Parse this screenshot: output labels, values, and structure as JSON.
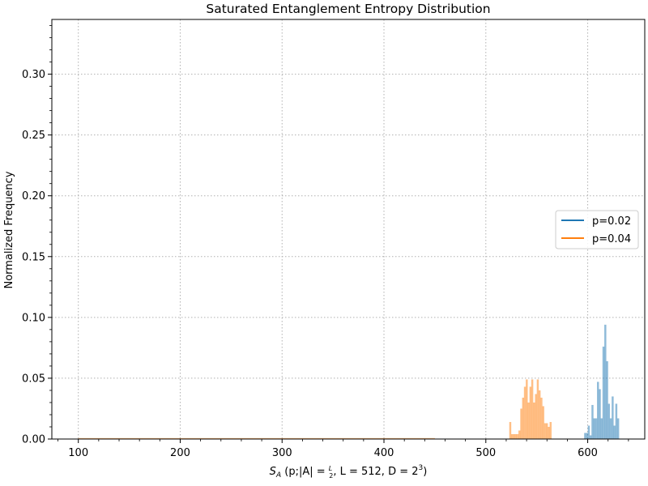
{
  "chart_data": {
    "type": "bar",
    "title": "Saturated Entanglement Entropy Distribution",
    "xlabel": "S_A (p;|A|=L/2, L=512, D=2^3)",
    "xlabel_parts": {
      "S": "S",
      "A": "A",
      "open": " (p;|A| = ",
      "frac_num": "L",
      "frac_den": "2",
      "mid": ", L = 512, D = 2",
      "exp": "3",
      "close": ")"
    },
    "ylabel": "Normalized Frequency",
    "xlim": [
      74,
      656
    ],
    "ylim": [
      0,
      0.345
    ],
    "x_ticks": [
      100,
      200,
      300,
      400,
      500,
      600
    ],
    "y_ticks": [
      0.0,
      0.05,
      0.1,
      0.15,
      0.2,
      0.25,
      0.3
    ],
    "y_tick_labels": [
      "0.00",
      "0.05",
      "0.10",
      "0.15",
      "0.20",
      "0.25",
      "0.30"
    ],
    "grid": true,
    "legend_position": "center-right",
    "series": [
      {
        "name": "p=0.02",
        "color": "#1f77b4",
        "bin_width": 1.8,
        "bins": [
          [
            596.5,
            0.005
          ],
          [
            598.3,
            0.005
          ],
          [
            600.1,
            0.011
          ],
          [
            601.9,
            0.003
          ],
          [
            603.7,
            0.028
          ],
          [
            605.5,
            0.017
          ],
          [
            607.3,
            0.017
          ],
          [
            609.1,
            0.047
          ],
          [
            610.9,
            0.041
          ],
          [
            612.7,
            0.017
          ],
          [
            614.5,
            0.076
          ],
          [
            616.3,
            0.094
          ],
          [
            618.1,
            0.064
          ],
          [
            619.9,
            0.029
          ],
          [
            621.7,
            0.017
          ],
          [
            623.5,
            0.035
          ],
          [
            625.3,
            0.011
          ],
          [
            627.1,
            0.029
          ],
          [
            628.9,
            0.017
          ]
        ]
      },
      {
        "name": "p=0.04",
        "color": "#ff7f0e",
        "bin_width": 1.8,
        "bins": [
          [
            523.0,
            0.014
          ],
          [
            524.8,
            0.004
          ],
          [
            526.6,
            0.004
          ],
          [
            528.4,
            0.004
          ],
          [
            530.2,
            0.004
          ],
          [
            532.0,
            0.007
          ],
          [
            533.8,
            0.025
          ],
          [
            535.6,
            0.034
          ],
          [
            537.4,
            0.043
          ],
          [
            539.2,
            0.049
          ],
          [
            541.0,
            0.03
          ],
          [
            542.8,
            0.043
          ],
          [
            544.6,
            0.049
          ],
          [
            546.4,
            0.03
          ],
          [
            548.2,
            0.037
          ],
          [
            550.0,
            0.049
          ],
          [
            551.8,
            0.04
          ],
          [
            553.6,
            0.034
          ],
          [
            555.4,
            0.027
          ],
          [
            557.2,
            0.013
          ],
          [
            559.0,
            0.013
          ],
          [
            560.8,
            0.01
          ],
          [
            562.6,
            0.014
          ]
        ],
        "baseline_range": [
          100,
          450
        ],
        "baseline_value": 0.0005
      }
    ]
  }
}
